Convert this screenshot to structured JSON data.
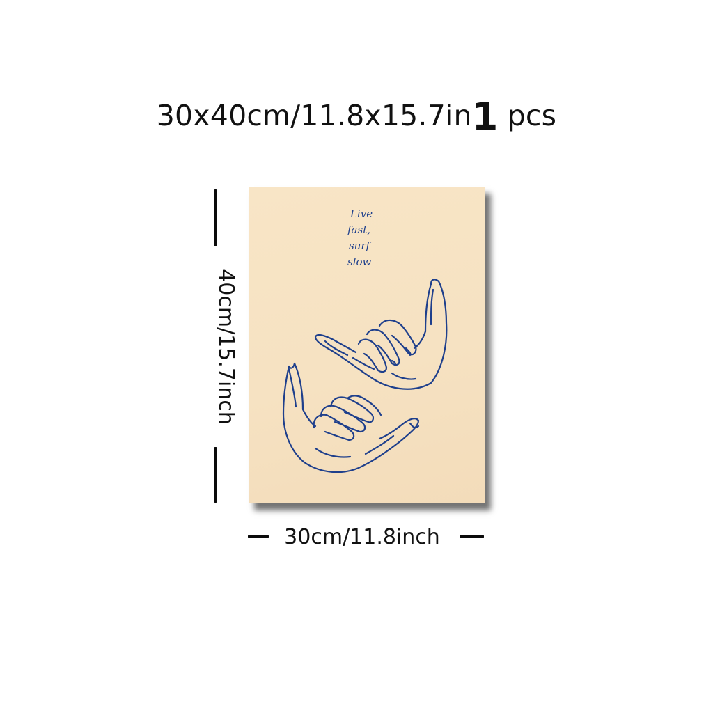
{
  "headline": {
    "size_text": "30x40cm/11.8x15.7in",
    "quantity_number": "1",
    "quantity_unit": "pcs"
  },
  "poster": {
    "quote_lines": [
      "Live",
      "fast,",
      "surf",
      "slow"
    ],
    "background_color": "#f6e2c2",
    "ink_color": "#1e3f8c",
    "illustration": "two hands making shaka sign"
  },
  "dimensions": {
    "height_label": "40cm/15.7inch",
    "width_label": "30cm/11.8inch"
  }
}
